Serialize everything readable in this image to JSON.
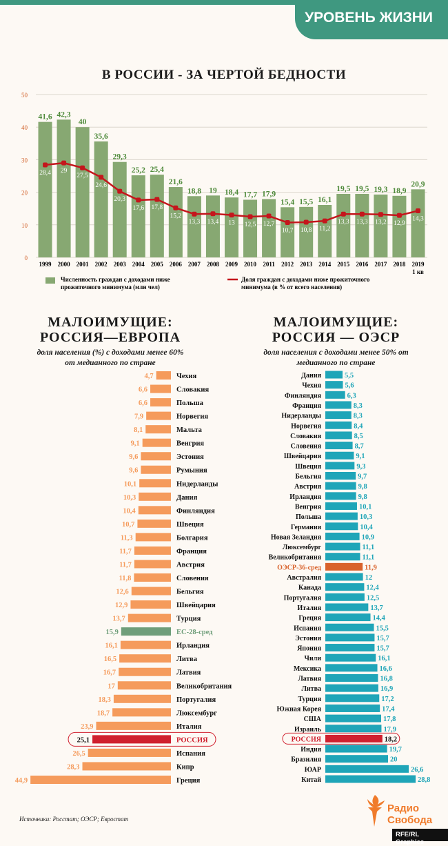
{
  "header": {
    "section_badge": "УРОВЕНЬ ЖИЗНИ"
  },
  "colors": {
    "accent": "#3f9880",
    "bar_green": "#87a872",
    "line_red": "#c4161c",
    "label_green": "#4e8a3a",
    "europe_bar": "#f59b5c",
    "eu_avg": "#6f9e7a",
    "oecd_bar": "#1fa5b8",
    "oecd_avg": "#d9622b",
    "russia": "#d0202e"
  },
  "chart_data": [
    {
      "type": "bar+line",
      "title": "В РОССИИ - ЗА ЧЕРТОЙ БЕДНОСТИ",
      "categories": [
        "1999",
        "2000",
        "2001",
        "2002",
        "2003",
        "2004",
        "2005",
        "2006",
        "2007",
        "2008",
        "2009",
        "2010",
        "2011",
        "2012",
        "2013",
        "2014",
        "2015",
        "2016",
        "2017",
        "2018",
        "2019 1 кв"
      ],
      "ylim": [
        0,
        50
      ],
      "yticks": [
        0,
        10,
        20,
        30,
        40,
        50
      ],
      "grid": true,
      "legend_position": "bottom",
      "series": [
        {
          "name": "Численность граждан с доходами ниже прожиточного минимума (млн чел)",
          "type": "bar",
          "values": [
            41.6,
            42.3,
            40,
            35.6,
            29.3,
            25.2,
            25.4,
            21.6,
            18.8,
            19,
            18.4,
            17.7,
            17.9,
            15.4,
            15.5,
            16.1,
            19.5,
            19.5,
            19.3,
            18.9,
            20.9
          ]
        },
        {
          "name": "Доля граждан с доходами ниже прожиточного минимума (в % от всего населения)",
          "type": "line",
          "values": [
            28.4,
            29,
            27.5,
            24.6,
            20.3,
            17.6,
            17.8,
            15.2,
            13.3,
            13.4,
            13,
            12.5,
            12.7,
            10.7,
            10.8,
            11.2,
            13.3,
            13.3,
            13.2,
            12.9,
            14.3
          ]
        }
      ],
      "legend_lines": [
        [
          "Численность граждан с доходами ниже",
          "прожиточного минимума (млн чел)"
        ],
        [
          "Доля граждан с доходами ниже прожиточного",
          "минимума (в % от всего населения)"
        ]
      ]
    },
    {
      "type": "bar",
      "orientation": "horizontal",
      "title": "МАЛОИМУЩИЕ: РОССИЯ—ЕВРОПА",
      "title_lines": [
        "МАЛОИМУЩИЕ:",
        "РОССИЯ—ЕВРОПА"
      ],
      "subtitle_lines": [
        "доля населения (%) с доходами менее 60%",
        "от медианного по стране"
      ],
      "categories": [
        "Чехия",
        "Словакия",
        "Польша",
        "Норвегия",
        "Мальта",
        "Венгрия",
        "Эстония",
        "Румыния",
        "Нидерланды",
        "Дания",
        "Финляндия",
        "Швеция",
        "Болгария",
        "Франция",
        "Австрия",
        "Словения",
        "Бельгия",
        "Швейцария",
        "Турция",
        "ЕС-28-сред",
        "Ирландия",
        "Литва",
        "Латвия",
        "Великобритания",
        "Португалия",
        "Люксембург",
        "Италия",
        "РОССИЯ",
        "Испания",
        "Кипр",
        "Греция"
      ],
      "values": [
        4.7,
        6.6,
        6.6,
        7.9,
        8.1,
        9.1,
        9.6,
        9.6,
        10.1,
        10.3,
        10.4,
        10.7,
        11.3,
        11.7,
        11.7,
        11.8,
        12.6,
        12.9,
        13.7,
        15.9,
        16.1,
        16.5,
        16.7,
        17,
        18.3,
        18.7,
        23.9,
        25.1,
        26.5,
        28.3,
        44.9
      ],
      "highlight": {
        "ЕС-28-сред": "average",
        "РОССИЯ": "russia"
      }
    },
    {
      "type": "bar",
      "orientation": "horizontal",
      "title": "МАЛОИМУЩИЕ: РОССИЯ — ОЭСР",
      "title_lines": [
        "МАЛОИМУЩИЕ:",
        "РОССИЯ — ОЭСР"
      ],
      "subtitle_lines": [
        "доля населения с доходами менее 50% от",
        "медианного по стране"
      ],
      "categories": [
        "Дания",
        "Чехия",
        "Финляндия",
        "Франция",
        "Нидерланды",
        "Норвегия",
        "Словакия",
        "Словения",
        "Швейцария",
        "Швеция",
        "Бельгия",
        "Австрия",
        "Ирландия",
        "Венгрия",
        "Польша",
        "Германия",
        "Новая Зеландия",
        "Люксембург",
        "Великобритания",
        "ОЭСР-36-сред",
        "Австралия",
        "Канада",
        "Португалия",
        "Италия",
        "Греция",
        "Испания",
        "Эстония",
        "Япония",
        "Чили",
        "Мексика",
        "Латвия",
        "Литва",
        "Турция",
        "Южная Корея",
        "США",
        "Израиль",
        "РОССИЯ",
        "Индия",
        "Бразилия",
        "ЮАР",
        "Китай"
      ],
      "values": [
        5.5,
        5.6,
        6.3,
        8.3,
        8.3,
        8.4,
        8.5,
        8.7,
        9.1,
        9.3,
        9.7,
        9.8,
        9.8,
        10.1,
        10.3,
        10.4,
        10.9,
        11.1,
        11.1,
        11.9,
        12,
        12.4,
        12.5,
        13.7,
        14.4,
        15.5,
        15.7,
        15.7,
        16.1,
        16.6,
        16.8,
        16.9,
        17.2,
        17.4,
        17.8,
        17.9,
        18.2,
        19.7,
        20,
        26.6,
        28.8
      ],
      "highlight": {
        "ОЭСР-36-сред": "average",
        "РОССИЯ": "russia"
      }
    }
  ],
  "footer": {
    "source": "Источники: Росстат; ОЭСР; Евростат",
    "logo_text": [
      "Радио",
      "Свобода"
    ],
    "credit": "RFE/RL Graphics"
  }
}
